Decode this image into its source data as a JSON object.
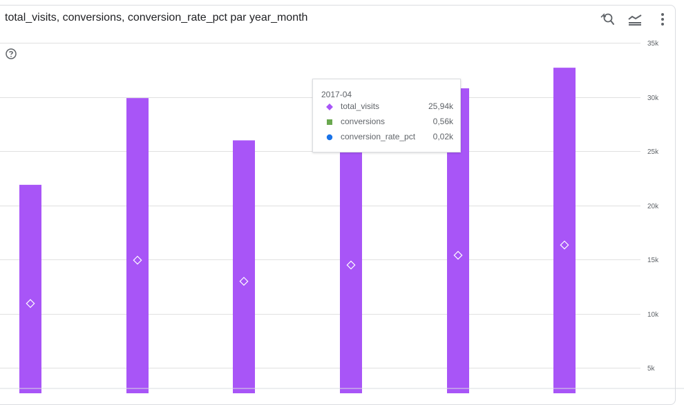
{
  "header": {
    "title": "total_visits, conversions, conversion_rate_pct par year_month"
  },
  "toolbar": {
    "zoom_icon": "zoom-reset-icon",
    "legend_icon": "legend-toggle-icon",
    "menu_icon": "more-vert-icon"
  },
  "help_icon": "help-icon",
  "colors": {
    "bar": "#a855f7",
    "grid": "#e0e0e0",
    "conversions": "#6aa84f",
    "conversion_rate_pct": "#1a73e8"
  },
  "chart_data": {
    "type": "bar",
    "title": "total_visits, conversions, conversion_rate_pct par year_month",
    "xlabel": "year_month",
    "ylabel": "",
    "ylim": [
      0,
      35000
    ],
    "y_ticks": [
      "5k",
      "10k",
      "15k",
      "20k",
      "25k",
      "30k",
      "35k"
    ],
    "y_tick_values": [
      5000,
      10000,
      15000,
      20000,
      25000,
      30000,
      35000
    ],
    "categories": [
      "",
      "",
      "",
      "2017-04",
      "",
      ""
    ],
    "series": [
      {
        "name": "total_visits",
        "values": [
          21900,
          29900,
          26000,
          25940,
          30800,
          32700
        ],
        "point_values": [
          10950,
          14950,
          13000,
          14500,
          15400,
          16350
        ]
      }
    ],
    "legend_position": "none"
  },
  "tooltip": {
    "header": "2017-04",
    "rows": [
      {
        "name": "total_visits",
        "value": "25,94k",
        "marker": "diamond",
        "color": "#a855f7"
      },
      {
        "name": "conversions",
        "value": "0,56k",
        "marker": "square",
        "color": "#6aa84f"
      },
      {
        "name": "conversion_rate_pct",
        "value": "0,02k",
        "marker": "circle",
        "color": "#1a73e8"
      }
    ]
  }
}
